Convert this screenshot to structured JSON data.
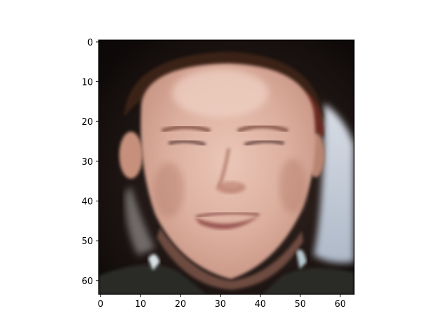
{
  "chart_data": {
    "type": "heatmap",
    "description_visible": "image rendered as a 64x64 pixel grid (face photo) shown with matplotlib imshow",
    "x": {
      "label": "",
      "range": [
        -0.5,
        63.5
      ],
      "ticks": [
        0,
        10,
        20,
        30,
        40,
        50,
        60
      ],
      "tick_labels": [
        "0",
        "10",
        "20",
        "30",
        "40",
        "50",
        "60"
      ]
    },
    "y": {
      "label": "",
      "range": [
        63.5,
        -0.5
      ],
      "ticks": [
        0,
        10,
        20,
        30,
        40,
        50,
        60
      ],
      "tick_labels": [
        "0",
        "10",
        "20",
        "30",
        "40",
        "50",
        "60"
      ]
    },
    "grid": false,
    "legend": "none",
    "image_size": [
      64,
      64
    ],
    "colors": {
      "background_dark": "#120d0b",
      "skin_light": "#e8c3b3",
      "skin_mid": "#d6a594",
      "skin_shadow": "#b8816f",
      "hair_dark": "#3a2219",
      "wall_light": "#c9d3df",
      "shirt_dark": "#2a2b27",
      "lip": "#9b5954"
    }
  }
}
